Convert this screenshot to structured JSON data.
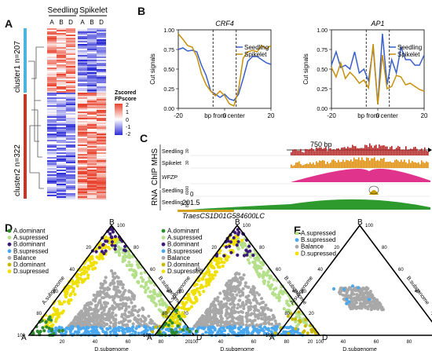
{
  "panel_labels": {
    "A": "A",
    "B": "B",
    "C": "C",
    "D": "D",
    "E": "E"
  },
  "panelA": {
    "group_labels": [
      "Seedling",
      "Spikelet"
    ],
    "column_labels": [
      "A",
      "B",
      "D",
      "A",
      "B",
      "D"
    ],
    "cluster1_label": "cluster1 n=207",
    "cluster2_label": "cluster2 n=322",
    "legend_title_1": "Zscored",
    "legend_title_2": "FPscore",
    "legend_ticks": [
      "2",
      "1",
      "0",
      "-1",
      "-2"
    ],
    "colors": {
      "high": "#e8432e",
      "mid": "#ffffff",
      "low": "#2b2bd6",
      "cluster1": "#4fb3e0",
      "cluster2": "#c0392b"
    }
  },
  "panelB": {
    "xlabel": "bp from center",
    "ylabel": "Cut signals",
    "legend": [
      "Seedling",
      "Spikelet"
    ],
    "series_colors": {
      "Seedling": "#3a5fc8",
      "Spikelet": "#c8900a"
    },
    "chart_data": [
      {
        "type": "line",
        "title": "CRF4",
        "x": [
          -20,
          -18,
          -16,
          -14,
          -12,
          -10,
          -8,
          -6,
          -4,
          -2,
          0,
          2,
          4,
          6,
          8,
          10,
          12,
          14,
          16,
          18,
          20
        ],
        "series": [
          {
            "name": "Seedling",
            "values": [
              0.75,
              0.77,
              0.73,
              0.74,
              0.72,
              0.55,
              0.42,
              0.22,
              0.18,
              0.14,
              0.18,
              0.12,
              0.1,
              0.18,
              0.38,
              0.6,
              0.66,
              0.66,
              0.62,
              0.58,
              0.56
            ]
          },
          {
            "name": "Spikelet",
            "values": [
              0.95,
              0.88,
              0.8,
              0.78,
              0.66,
              0.44,
              0.3,
              0.22,
              0.16,
              0.22,
              0.16,
              0.06,
              0.03,
              0.24,
              0.64,
              0.72,
              0.74,
              0.72,
              0.8,
              0.76,
              0.8
            ]
          }
        ],
        "xlim": [
          -20,
          20
        ],
        "ylim": [
          0,
          1.0
        ],
        "yticks": [
          "0.00",
          "0.25",
          "0.50",
          "0.75",
          "1.00"
        ],
        "xticks": [
          "-20",
          "0",
          "20"
        ]
      },
      {
        "type": "line",
        "title": "AP1",
        "x": [
          -20,
          -18,
          -16,
          -14,
          -12,
          -10,
          -8,
          -6,
          -4,
          -2,
          0,
          2,
          4,
          6,
          8,
          10,
          12,
          14,
          16,
          18,
          20
        ],
        "series": [
          {
            "name": "Seedling",
            "values": [
              0.55,
              0.72,
              0.52,
              0.55,
              0.5,
              0.72,
              0.45,
              0.5,
              0.35,
              0.78,
              0.05,
              0.95,
              0.3,
              0.62,
              0.45,
              0.78,
              0.62,
              0.62,
              0.55,
              0.55,
              0.68
            ]
          },
          {
            "name": "Spikelet",
            "values": [
              0.52,
              0.4,
              0.58,
              0.38,
              0.46,
              0.4,
              0.32,
              0.36,
              0.26,
              0.82,
              0.05,
              0.68,
              0.25,
              0.28,
              0.42,
              0.4,
              0.3,
              0.32,
              0.28,
              0.24,
              0.22
            ]
          }
        ],
        "xlim": [
          -20,
          20
        ],
        "ylim": [
          0,
          1.0
        ],
        "yticks": [
          "0.00",
          "0.25",
          "0.50",
          "0.75",
          "1.00"
        ],
        "xticks": [
          "-20",
          "0",
          "20"
        ]
      }
    ]
  },
  "panelC": {
    "scale_label": "750 bp",
    "group_chip": "ChIP MHS",
    "group_rna": "RNA",
    "tracks": [
      "Seedling",
      "Spikelet",
      "WFZP",
      "Seedling",
      "Seedling"
    ],
    "track_ranges": [
      "30",
      "30",
      "",
      "6000",
      "800"
    ],
    "value_zero": "0",
    "value_mid": "201.5",
    "gene_label": "TraesCS1D01G584600LC",
    "colors": {
      "seedling_chip": "#b22222",
      "spikelet_chip": "#e08a00",
      "wfzp": "#e0338c",
      "rna": "#2e9a2e",
      "gene": "#d4a020"
    }
  },
  "ternary": {
    "vertex_top": "B",
    "vertex_left": "A",
    "vertex_right": "D",
    "axis_left": "A.subgenome",
    "axis_right": "B.subgenome",
    "axis_bottom": "D.subgenome",
    "ticks": [
      "20",
      "40",
      "60",
      "80",
      "100"
    ],
    "legend_D": [
      {
        "label": "A.dominant",
        "color": "#2e8b2e"
      },
      {
        "label": "A.supressed",
        "color": "#b5e08a"
      },
      {
        "label": "B.dominant",
        "color": "#3b1a78"
      },
      {
        "label": "B.supressed",
        "color": "#4aa8f0"
      },
      {
        "label": "Balance",
        "color": "#a8a8a8"
      },
      {
        "label": "D.dominant",
        "color": "#c8b800"
      },
      {
        "label": "D.supressed",
        "color": "#f0e000"
      }
    ],
    "legend_E": [
      {
        "label": "A.supressed",
        "color": "#b5e08a"
      },
      {
        "label": "B.supressed",
        "color": "#4aa8f0"
      },
      {
        "label": "Balance",
        "color": "#a8a8a8"
      },
      {
        "label": "D.supressed",
        "color": "#f0e000"
      }
    ]
  }
}
